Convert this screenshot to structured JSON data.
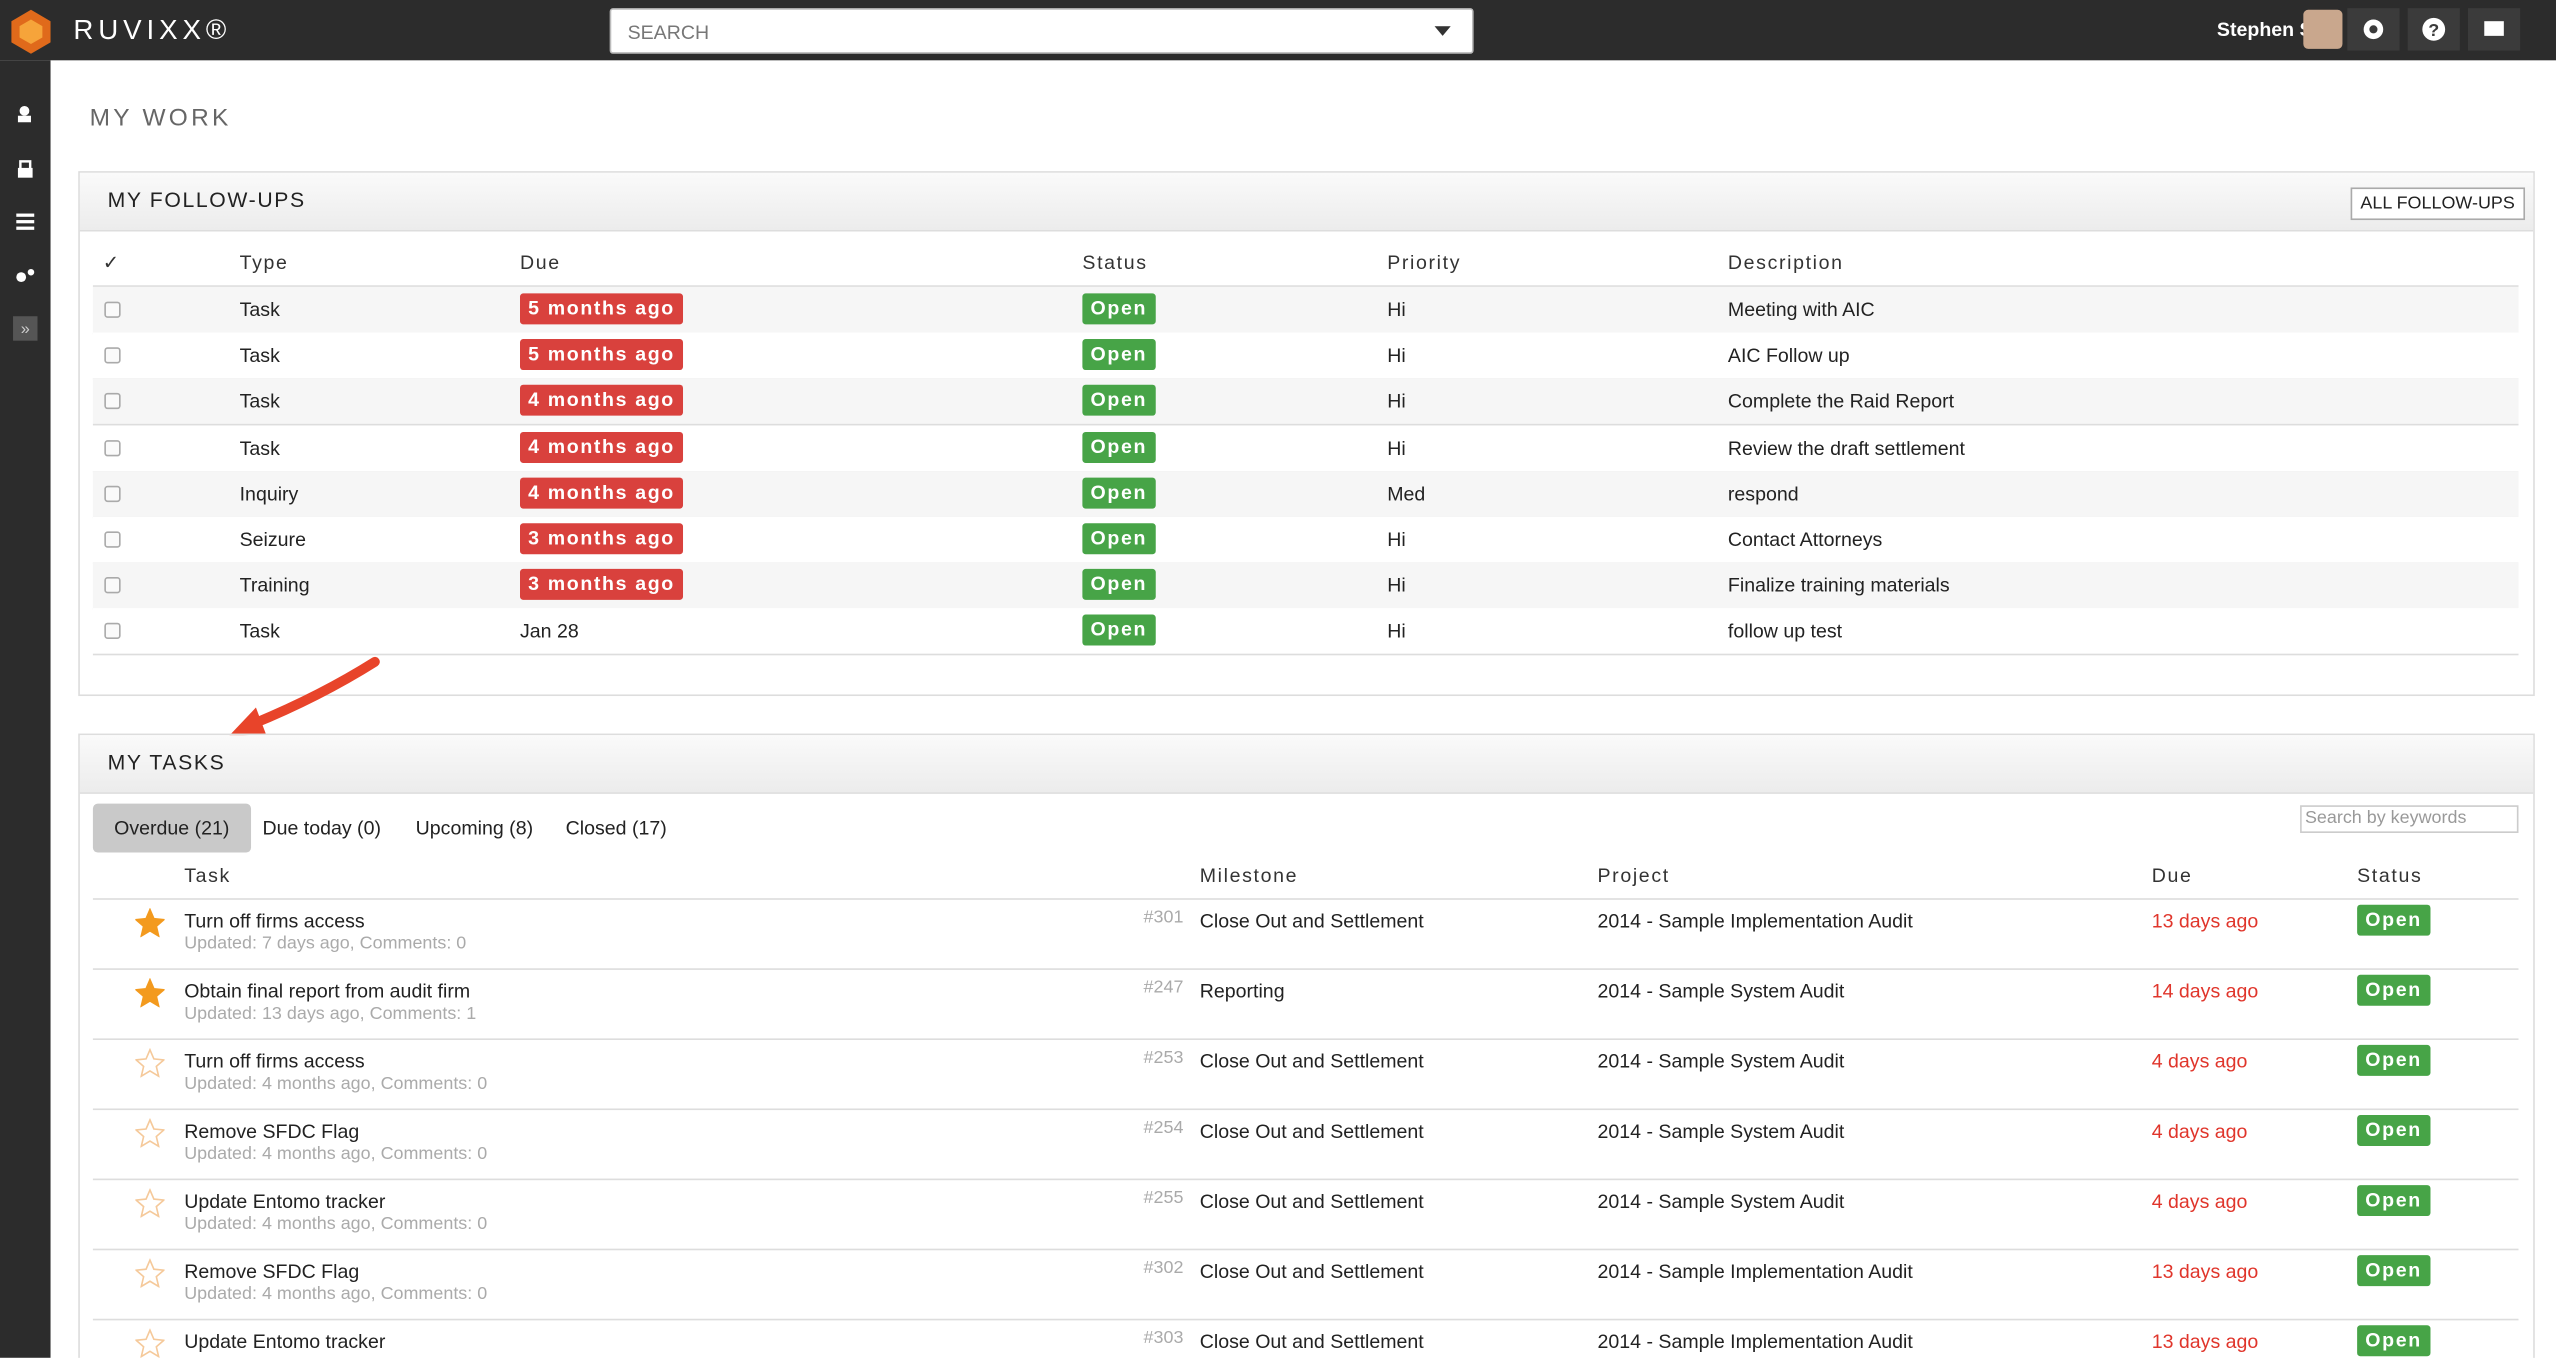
{
  "header": {
    "logo": "RUVIXX®",
    "search_placeholder": "SEARCH",
    "user": "Stephen S"
  },
  "page_title": "MY WORK",
  "followups": {
    "title": "MY FOLLOW-UPS",
    "button": "ALL FOLLOW-UPS",
    "columns": [
      "✓",
      "Type",
      "Due",
      "Status",
      "Priority",
      "Description"
    ],
    "rows": [
      {
        "type": "Task",
        "due": "5 months ago",
        "overdue": true,
        "status": "Open",
        "priority": "Hi",
        "description": "Meeting with AIC"
      },
      {
        "type": "Task",
        "due": "5 months ago",
        "overdue": true,
        "status": "Open",
        "priority": "Hi",
        "description": "AIC Follow up"
      },
      {
        "type": "Task",
        "due": "4 months ago",
        "overdue": true,
        "status": "Open",
        "priority": "Hi",
        "description": "Complete the Raid Report"
      },
      {
        "type": "Task",
        "due": "4 months ago",
        "overdue": true,
        "status": "Open",
        "priority": "Hi",
        "description": "Review the draft settlement"
      },
      {
        "type": "Inquiry",
        "due": "4 months ago",
        "overdue": true,
        "status": "Open",
        "priority": "Med",
        "description": "respond"
      },
      {
        "type": "Seizure",
        "due": "3 months ago",
        "overdue": true,
        "status": "Open",
        "priority": "Hi",
        "description": "Contact Attorneys"
      },
      {
        "type": "Training",
        "due": "3 months ago",
        "overdue": true,
        "status": "Open",
        "priority": "Hi",
        "description": "Finalize training materials"
      },
      {
        "type": "Task",
        "due": "Jan 28",
        "overdue": false,
        "status": "Open",
        "priority": "Hi",
        "description": "follow up test"
      }
    ]
  },
  "tasks": {
    "title": "MY TASKS",
    "search_placeholder": "Search by keywords",
    "tabs": [
      "Overdue (21)",
      "Due today (0)",
      "Upcoming (8)",
      "Closed (17)"
    ],
    "active_tab": 0,
    "columns": [
      "Task",
      "Milestone",
      "Project",
      "Due",
      "Status"
    ],
    "rows": [
      {
        "starred": true,
        "task": "Turn off firms access",
        "meta": "Updated: 7 days ago, Comments: 0",
        "id": "#301",
        "milestone": "Close Out and Settlement",
        "project": "2014 - Sample Implementation Audit",
        "due": "13 days ago",
        "status": "Open"
      },
      {
        "starred": true,
        "task": "Obtain final report from audit firm",
        "meta": "Updated: 13 days ago, Comments: 1",
        "id": "#247",
        "milestone": "Reporting",
        "project": "2014 - Sample System Audit",
        "due": "14 days ago",
        "status": "Open"
      },
      {
        "starred": false,
        "task": "Turn off firms access",
        "meta": "Updated: 4 months ago, Comments: 0",
        "id": "#253",
        "milestone": "Close Out and Settlement",
        "project": "2014 - Sample System Audit",
        "due": "4 days ago",
        "status": "Open"
      },
      {
        "starred": false,
        "task": "Remove SFDC Flag",
        "meta": "Updated: 4 months ago, Comments: 0",
        "id": "#254",
        "milestone": "Close Out and Settlement",
        "project": "2014 - Sample System Audit",
        "due": "4 days ago",
        "status": "Open"
      },
      {
        "starred": false,
        "task": "Update Entomo tracker",
        "meta": "Updated: 4 months ago, Comments: 0",
        "id": "#255",
        "milestone": "Close Out and Settlement",
        "project": "2014 - Sample System Audit",
        "due": "4 days ago",
        "status": "Open"
      },
      {
        "starred": false,
        "task": "Remove SFDC Flag",
        "meta": "Updated: 4 months ago, Comments: 0",
        "id": "#302",
        "milestone": "Close Out and Settlement",
        "project": "2014 - Sample Implementation Audit",
        "due": "13 days ago",
        "status": "Open"
      },
      {
        "starred": false,
        "task": "Update Entomo tracker",
        "id": "#303",
        "milestone": "Close Out and Settlement",
        "project": "2014 - Sample Implementation Audit",
        "due": "13 days ago",
        "status": "Open"
      }
    ]
  }
}
